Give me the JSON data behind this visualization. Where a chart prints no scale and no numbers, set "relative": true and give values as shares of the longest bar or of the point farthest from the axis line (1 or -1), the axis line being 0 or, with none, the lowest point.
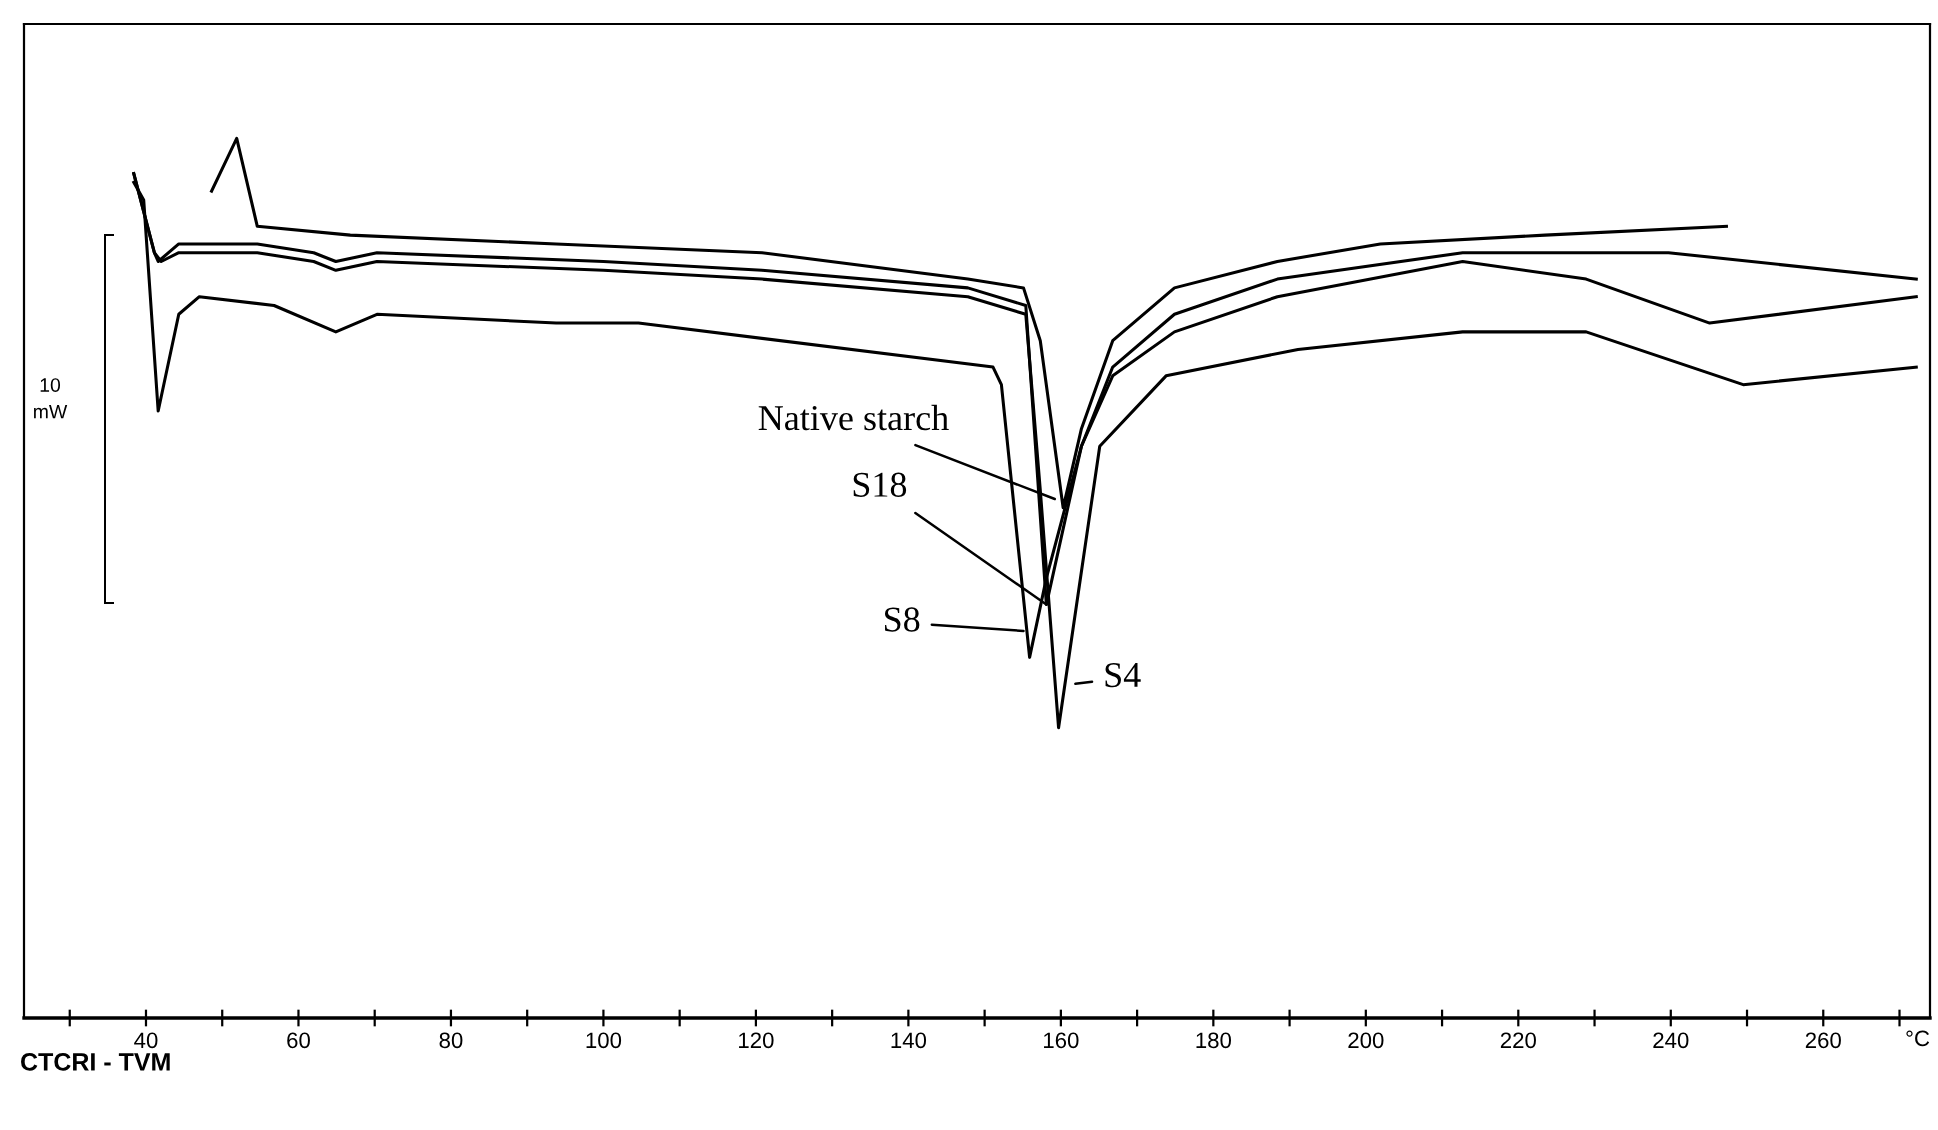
{
  "chart_data": {
    "type": "line",
    "relative": true,
    "xlabel": "°C",
    "xlim": [
      24,
      274
    ],
    "xticks": [
      {
        "value": 30,
        "label": null
      },
      40,
      {
        "value": 50,
        "label": null
      },
      60,
      {
        "value": 70,
        "label": null
      },
      80,
      {
        "value": 90,
        "label": null
      },
      100,
      {
        "value": 110,
        "label": null
      },
      120,
      {
        "value": 130,
        "label": null
      },
      140,
      {
        "value": 150,
        "label": null
      },
      160,
      {
        "value": 170,
        "label": null
      },
      180,
      {
        "value": 190,
        "label": null
      },
      200,
      {
        "value": 210,
        "label": null
      },
      220,
      {
        "value": 230,
        "label": null
      },
      240,
      {
        "value": 250,
        "label": null
      },
      260,
      {
        "value": 270,
        "label": null
      }
    ],
    "grid": false,
    "legend": false,
    "marker": "none",
    "line_style": "solid",
    "series": [
      {
        "color": "#000000",
        "x": [
          48.6,
          51.9,
          54.6,
          66.8,
          93.8,
          120.8,
          147.8,
          155.1,
          157.3,
          160.3,
          162.7,
          166.8,
          174.9,
          188.4,
          201.9,
          223.5,
          247.3
        ],
        "values": [
          0.94,
          1.0,
          0.9,
          0.89,
          0.88,
          0.87,
          0.84,
          0.83,
          0.77,
          0.58,
          0.67,
          0.77,
          0.83,
          0.86,
          0.88,
          0.89,
          0.9
        ]
      },
      {
        "color": "#000000",
        "x": [
          38.4,
          41.1,
          41.6,
          44.3,
          54.6,
          62,
          64.9,
          70.3,
          100,
          120.8,
          147.8,
          155.4,
          158.1,
          162.7,
          166.8,
          174.9,
          188.4,
          212.7,
          239.7,
          272.2
        ],
        "values": [
          0.96,
          0.87,
          0.86,
          0.88,
          0.88,
          0.87,
          0.86,
          0.87,
          0.86,
          0.85,
          0.83,
          0.81,
          0.47,
          0.65,
          0.74,
          0.8,
          0.84,
          0.87,
          0.87,
          0.84
        ]
      },
      {
        "color": "#000000",
        "x": [
          38.4,
          39.7,
          41.6,
          44.3,
          47.0,
          56.8,
          64.9,
          70.3,
          93.8,
          104.6,
          151.1,
          152.2,
          155.9,
          158.1,
          162.7,
          166.8,
          174.9,
          188.4,
          212.7,
          228.9,
          245.1,
          272.2
        ],
        "values": [
          0.95,
          0.93,
          0.69,
          0.8,
          0.82,
          0.81,
          0.78,
          0.8,
          0.79,
          0.79,
          0.74,
          0.72,
          0.41,
          0.5,
          0.65,
          0.73,
          0.78,
          0.82,
          0.86,
          0.84,
          0.79,
          0.82
        ]
      },
      {
        "color": "#000000",
        "x": [
          38.4,
          41.1,
          42,
          44.3,
          54.6,
          62,
          64.9,
          70.3,
          100,
          120.8,
          147.8,
          155.4,
          157.3,
          159.7,
          165.1,
          173.8,
          191.1,
          212.7,
          228.9,
          249.5,
          272.2
        ],
        "values": [
          0.96,
          0.87,
          0.86,
          0.87,
          0.87,
          0.86,
          0.85,
          0.86,
          0.85,
          0.84,
          0.82,
          0.8,
          0.6,
          0.33,
          0.65,
          0.73,
          0.76,
          0.78,
          0.78,
          0.72,
          0.74
        ]
      }
    ],
    "annotations": [
      {
        "text": "Native starch",
        "x": 159.2,
        "y": 0.59
      },
      {
        "text": "S18",
        "x": 158.1,
        "y": 0.47
      },
      {
        "text": "S8",
        "x": 155.1,
        "y": 0.44
      },
      {
        "text": "S4",
        "x": 161.9,
        "y": 0.38
      },
      "10\nmW",
      "CTCRI - TVM"
    ]
  }
}
